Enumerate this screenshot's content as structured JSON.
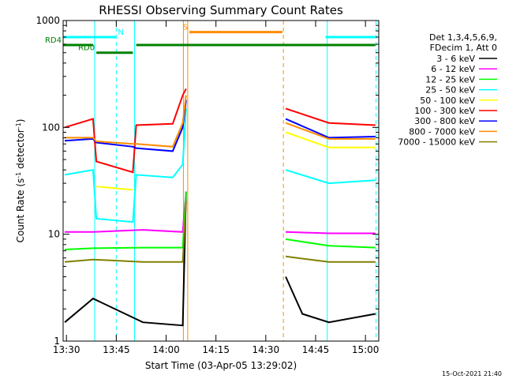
{
  "chart_data": {
    "type": "line",
    "title": "RHESSI Observing Summary Count Rates",
    "xlabel": "Start Time (03-Apr-05 13:29:02)",
    "ylabel": "Count Rate (s",
    "ylabel_sup": "-1",
    "ylabel_mid": " detector",
    "ylabel_sup2": "-1",
    "ylabel_end": ")",
    "yscale": "log",
    "ylim": [
      1,
      1000
    ],
    "xlim_minutes": [
      0,
      95
    ],
    "x_ticks": [
      "13:30",
      "13:45",
      "14:00",
      "14:15",
      "14:30",
      "14:45",
      "15:00"
    ],
    "y_ticks": [
      "1",
      "10",
      "100",
      "1000"
    ],
    "legend": {
      "header": [
        "Det 1,3,4,5,6,9,",
        "FDecim 1, Att 0"
      ],
      "placement": "right"
    },
    "series": [
      {
        "name": "3 - 6 keV",
        "color": "#000000",
        "segments": [
          [
            [
              0.5,
              1.5
            ],
            [
              9,
              2.5
            ],
            [
              24,
              1.5
            ],
            [
              36,
              1.4
            ],
            [
              37,
              25
            ]
          ],
          [
            [
              67,
              4
            ],
            [
              72,
              1.8
            ],
            [
              80,
              1.5
            ],
            [
              94,
              1.8
            ]
          ]
        ]
      },
      {
        "name": "6 - 12 keV",
        "color": "#ff00ff",
        "segments": [
          [
            [
              0.5,
              10.5
            ],
            [
              9,
              10.5
            ],
            [
              24,
              11
            ],
            [
              36,
              10.5
            ],
            [
              37,
              25
            ]
          ],
          [
            [
              67,
              10.5
            ],
            [
              80,
              10.2
            ],
            [
              94,
              10.2
            ]
          ]
        ]
      },
      {
        "name": "12 - 25 keV",
        "color": "#00ff00",
        "segments": [
          [
            [
              0.5,
              7.2
            ],
            [
              9,
              7.4
            ],
            [
              24,
              7.5
            ],
            [
              36,
              7.5
            ],
            [
              37,
              25
            ]
          ],
          [
            [
              67,
              9
            ],
            [
              80,
              7.8
            ],
            [
              94,
              7.5
            ]
          ]
        ]
      },
      {
        "name": "25 - 50 keV",
        "color": "#00ffff",
        "segments": [
          [
            [
              0.5,
              36
            ],
            [
              9,
              40
            ],
            [
              10,
              14
            ],
            [
              21,
              13
            ],
            [
              22,
              36
            ],
            [
              33,
              34
            ],
            [
              36,
              45
            ],
            [
              37,
              150
            ]
          ],
          [
            [
              67,
              40
            ],
            [
              80,
              30
            ],
            [
              94,
              32
            ]
          ]
        ]
      },
      {
        "name": "50 - 100 keV",
        "color": "#ffff00",
        "segments": [
          [
            [
              10,
              28
            ],
            [
              21,
              26
            ]
          ],
          [
            [
              67,
              90
            ],
            [
              80,
              65
            ],
            [
              94,
              65
            ]
          ]
        ]
      },
      {
        "name": "100 - 300 keV",
        "color": "#ff0000",
        "segments": [
          [
            [
              0.5,
              100
            ],
            [
              9,
              120
            ],
            [
              10,
              48
            ],
            [
              21,
              38
            ],
            [
              22,
              105
            ],
            [
              33,
              108
            ],
            [
              36,
              200
            ],
            [
              37,
              230
            ]
          ],
          [
            [
              67,
              150
            ],
            [
              80,
              110
            ],
            [
              94,
              105
            ]
          ]
        ]
      },
      {
        "name": "300 - 800 keV",
        "color": "#0000ff",
        "segments": [
          [
            [
              0.5,
              75
            ],
            [
              9,
              78
            ],
            [
              10,
              72
            ],
            [
              21,
              66
            ],
            [
              22,
              64
            ],
            [
              33,
              60
            ],
            [
              36,
              100
            ],
            [
              37,
              180
            ]
          ],
          [
            [
              67,
              120
            ],
            [
              80,
              80
            ],
            [
              94,
              82
            ]
          ]
        ]
      },
      {
        "name": "800 - 7000 keV",
        "color": "#ff8c00",
        "segments": [
          [
            [
              0.5,
              80
            ],
            [
              9,
              80
            ],
            [
              10,
              74
            ],
            [
              21,
              70
            ],
            [
              22,
              70
            ],
            [
              33,
              66
            ],
            [
              36,
              110
            ],
            [
              37,
              200
            ]
          ],
          [
            [
              67,
              110
            ],
            [
              80,
              78
            ],
            [
              94,
              78
            ]
          ]
        ]
      },
      {
        "name": "7000 - 15000 keV",
        "color": "#808000",
        "segments": [
          [
            [
              0.5,
              5.5
            ],
            [
              9,
              5.8
            ],
            [
              24,
              5.5
            ],
            [
              36,
              5.5
            ],
            [
              37,
              20
            ]
          ],
          [
            [
              67,
              6.2
            ],
            [
              80,
              5.5
            ],
            [
              94,
              5.5
            ]
          ]
        ]
      }
    ],
    "flags": [
      {
        "label": "N",
        "color": "#00ffff",
        "y": 700,
        "from": 0,
        "to": 16
      },
      {
        "label": "",
        "color": "#00ffff",
        "y": 700,
        "from": 79,
        "to": 94
      },
      {
        "label": "S",
        "color": "#ff8c00",
        "y": 780,
        "from": 38,
        "to": 66
      },
      {
        "label": "RD0",
        "color": "#008000",
        "y": 500,
        "from": 10,
        "to": 21
      },
      {
        "label": "RD4",
        "color": "#008000",
        "y": 590,
        "from": 0,
        "to": 9
      },
      {
        "label": "",
        "color": "#008000",
        "y": 590,
        "from": 22,
        "to": 94
      }
    ],
    "vlines": [
      {
        "x": 9.5,
        "color": "#00ffff",
        "style": "solid"
      },
      {
        "x": 16,
        "color": "#00ffff",
        "style": "dashed"
      },
      {
        "x": 21.5,
        "color": "#00ffff",
        "style": "solid"
      },
      {
        "x": 36.2,
        "color": "#ff8c00",
        "style": "solid"
      },
      {
        "x": 37.5,
        "color": "#ff8c00",
        "style": "solid"
      },
      {
        "x": 66.3,
        "color": "#ff8c00",
        "style": "dashed"
      },
      {
        "x": 79.5,
        "color": "#00ffff",
        "style": "solid"
      },
      {
        "x": 94.2,
        "color": "#00ffff",
        "style": "dashed"
      }
    ]
  },
  "footer": {
    "timestamp": "15-Oct-2021 21:40"
  }
}
